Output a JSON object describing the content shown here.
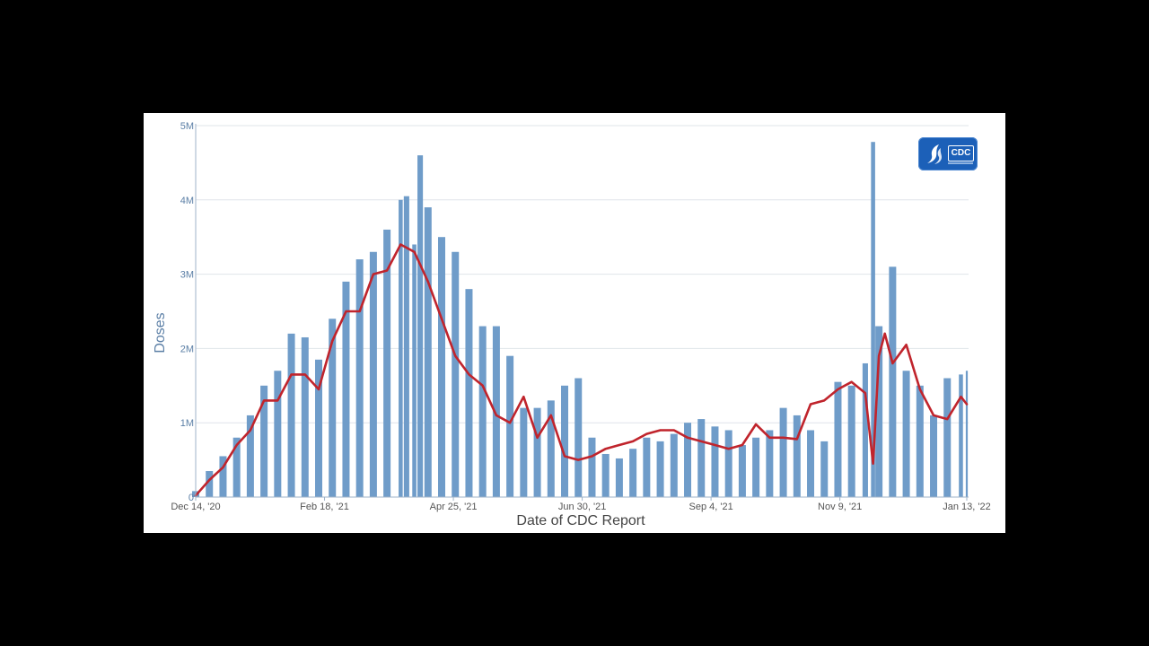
{
  "chart_data": {
    "type": "bar",
    "title": "",
    "xlabel": "Date of CDC Report",
    "ylabel": "Doses",
    "ylim": [
      0,
      5000000
    ],
    "y_tick_values": [
      0,
      1000000,
      2000000,
      3000000,
      4000000,
      5000000
    ],
    "y_tick_labels": [
      "0",
      "1M",
      "2M",
      "3M",
      "4M",
      "5M"
    ],
    "x_range": [
      "2020-12-14",
      "2022-01-13"
    ],
    "x_ticks": [
      {
        "date": "2020-12-14",
        "label": "Dec 14, '20"
      },
      {
        "date": "2021-02-18",
        "label": "Feb 18, '21"
      },
      {
        "date": "2021-04-25",
        "label": "Apr 25, '21"
      },
      {
        "date": "2021-06-30",
        "label": "Jun 30, '21"
      },
      {
        "date": "2021-09-04",
        "label": "Sep 4, '21"
      },
      {
        "date": "2021-11-09",
        "label": "Nov 9, '21"
      },
      {
        "date": "2022-01-13",
        "label": "Jan 13, '22"
      }
    ],
    "grid": true,
    "series": [
      {
        "kind": "bar",
        "color": "#6f9cc9",
        "x": [
          "2020-12-14",
          "2020-12-21",
          "2020-12-28",
          "2021-01-04",
          "2021-01-11",
          "2021-01-18",
          "2021-01-25",
          "2021-02-01",
          "2021-02-08",
          "2021-02-15",
          "2021-02-22",
          "2021-03-01",
          "2021-03-08",
          "2021-03-15",
          "2021-03-22",
          "2021-03-29",
          "2021-04-01",
          "2021-04-05",
          "2021-04-08",
          "2021-04-12",
          "2021-04-19",
          "2021-04-26",
          "2021-05-03",
          "2021-05-10",
          "2021-05-17",
          "2021-05-24",
          "2021-05-31",
          "2021-06-07",
          "2021-06-14",
          "2021-06-21",
          "2021-06-28",
          "2021-07-05",
          "2021-07-12",
          "2021-07-19",
          "2021-07-26",
          "2021-08-02",
          "2021-08-09",
          "2021-08-16",
          "2021-08-23",
          "2021-08-30",
          "2021-09-06",
          "2021-09-13",
          "2021-09-20",
          "2021-09-27",
          "2021-10-04",
          "2021-10-11",
          "2021-10-18",
          "2021-10-25",
          "2021-11-01",
          "2021-11-08",
          "2021-11-15",
          "2021-11-22",
          "2021-11-26",
          "2021-11-29",
          "2021-12-06",
          "2021-12-13",
          "2021-12-20",
          "2021-12-27",
          "2022-01-03",
          "2022-01-10",
          "2022-01-13"
        ],
        "values": [
          80000,
          350000,
          550000,
          800000,
          1100000,
          1500000,
          1700000,
          2200000,
          2150000,
          1850000,
          2400000,
          2900000,
          3200000,
          3300000,
          3600000,
          4000000,
          4050000,
          3400000,
          4600000,
          3900000,
          3500000,
          3300000,
          2800000,
          2300000,
          2300000,
          1900000,
          1200000,
          1200000,
          1300000,
          1500000,
          1600000,
          800000,
          580000,
          520000,
          650000,
          800000,
          750000,
          850000,
          1000000,
          1050000,
          950000,
          900000,
          700000,
          800000,
          900000,
          1200000,
          1100000,
          900000,
          750000,
          1550000,
          1500000,
          1800000,
          4780000,
          2300000,
          3100000,
          1700000,
          1500000,
          1100000,
          1600000,
          1650000,
          1700000
        ]
      },
      {
        "kind": "line",
        "color": "#c0242c",
        "x": [
          "2020-12-14",
          "2020-12-21",
          "2020-12-28",
          "2021-01-04",
          "2021-01-11",
          "2021-01-18",
          "2021-01-25",
          "2021-02-01",
          "2021-02-08",
          "2021-02-15",
          "2021-02-22",
          "2021-03-01",
          "2021-03-08",
          "2021-03-15",
          "2021-03-22",
          "2021-03-29",
          "2021-04-05",
          "2021-04-12",
          "2021-04-19",
          "2021-04-26",
          "2021-05-03",
          "2021-05-10",
          "2021-05-17",
          "2021-05-24",
          "2021-05-31",
          "2021-06-07",
          "2021-06-14",
          "2021-06-21",
          "2021-06-28",
          "2021-07-05",
          "2021-07-12",
          "2021-07-19",
          "2021-07-26",
          "2021-08-02",
          "2021-08-09",
          "2021-08-16",
          "2021-08-23",
          "2021-08-30",
          "2021-09-06",
          "2021-09-13",
          "2021-09-20",
          "2021-09-27",
          "2021-10-04",
          "2021-10-11",
          "2021-10-18",
          "2021-10-25",
          "2021-11-01",
          "2021-11-08",
          "2021-11-15",
          "2021-11-22",
          "2021-11-26",
          "2021-11-29",
          "2021-12-02",
          "2021-12-06",
          "2021-12-13",
          "2021-12-20",
          "2021-12-27",
          "2022-01-03",
          "2022-01-10",
          "2022-01-13"
        ],
        "values": [
          20000,
          230000,
          400000,
          700000,
          900000,
          1300000,
          1300000,
          1650000,
          1650000,
          1450000,
          2100000,
          2500000,
          2500000,
          3000000,
          3050000,
          3400000,
          3300000,
          2900000,
          2400000,
          1900000,
          1650000,
          1500000,
          1100000,
          1000000,
          1350000,
          800000,
          1100000,
          550000,
          500000,
          550000,
          650000,
          700000,
          750000,
          850000,
          900000,
          900000,
          800000,
          750000,
          700000,
          650000,
          700000,
          980000,
          800000,
          800000,
          780000,
          1250000,
          1300000,
          1450000,
          1550000,
          1400000,
          450000,
          1900000,
          2200000,
          1800000,
          2050000,
          1450000,
          1100000,
          1050000,
          1350000,
          1250000
        ]
      }
    ]
  },
  "logo": {
    "text": "CDC",
    "icon": "hhs-eagle-icon",
    "background": "#1c60b8"
  }
}
